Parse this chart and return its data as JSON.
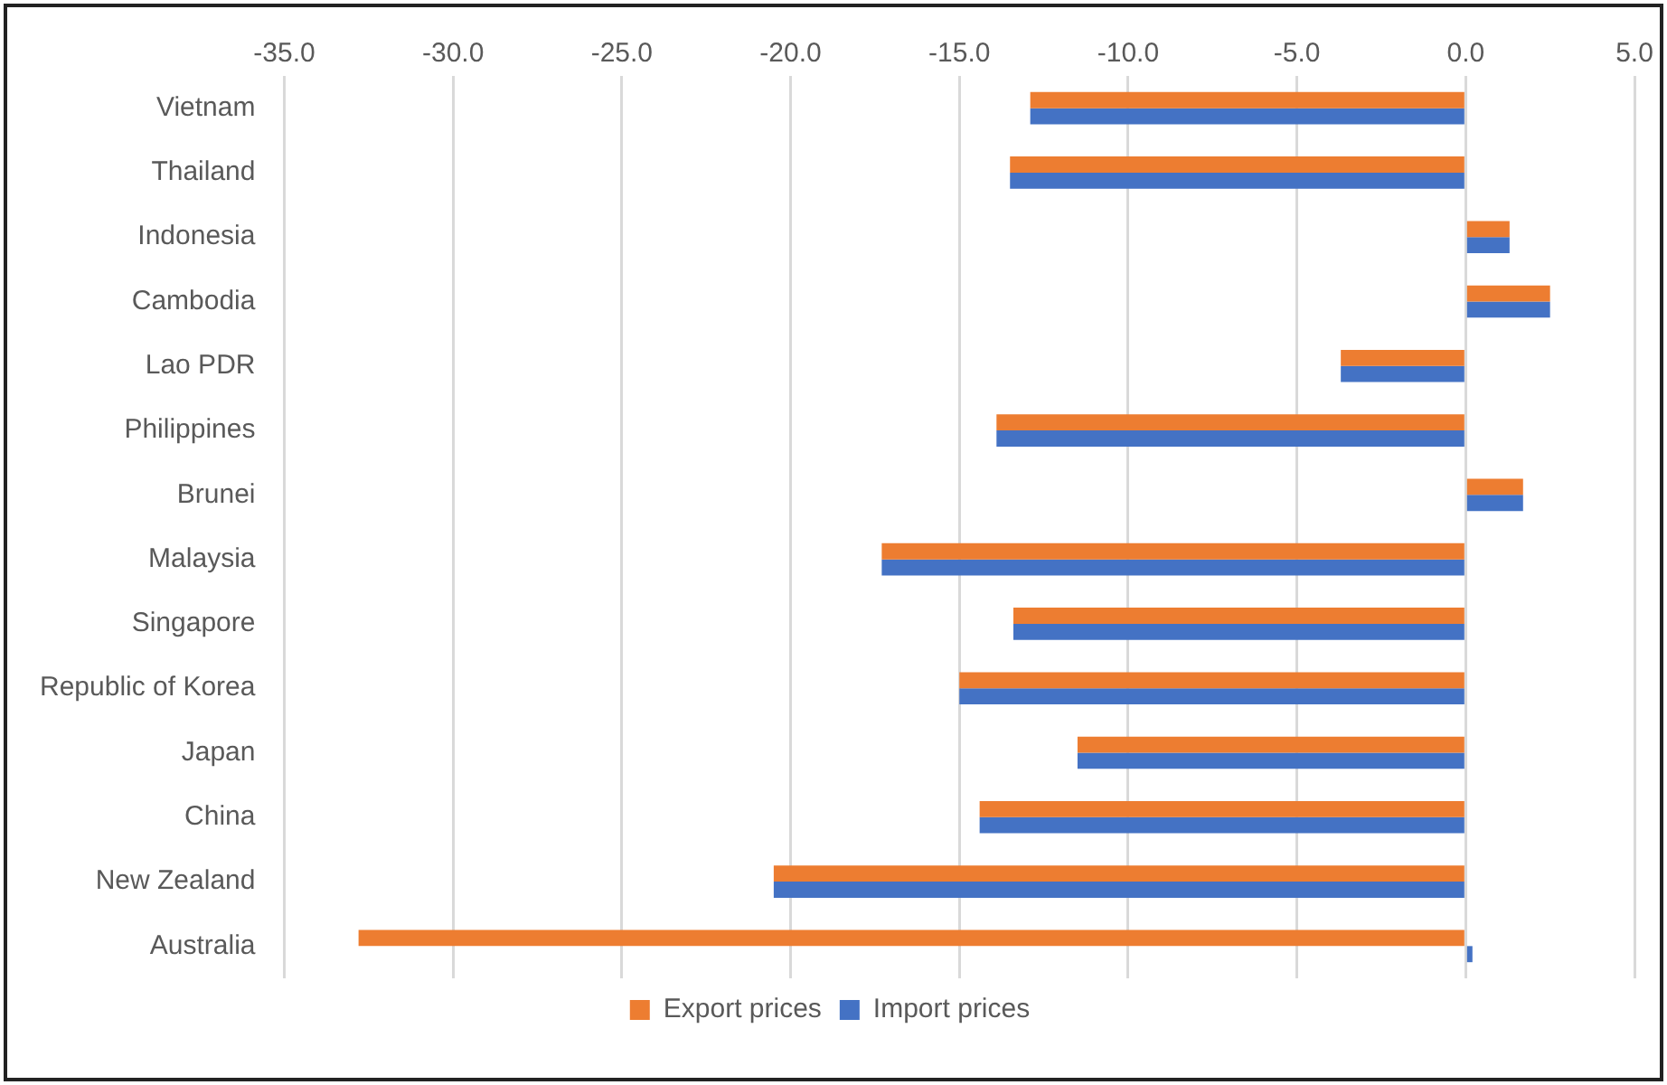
{
  "chart_data": {
    "type": "bar",
    "orientation": "horizontal",
    "categories": [
      "Vietnam",
      "Thailand",
      "Indonesia",
      "Cambodia",
      "Lao PDR",
      "Philippines",
      "Brunei",
      "Malaysia",
      "Singapore",
      "Republic of Korea",
      "Japan",
      "China",
      "New Zealand",
      "Australia"
    ],
    "series": [
      {
        "name": "Export prices",
        "color": "#ed7d31",
        "values": [
          -12.9,
          -13.5,
          1.3,
          2.5,
          -3.7,
          -13.9,
          1.7,
          -17.3,
          -13.4,
          -15.0,
          -11.5,
          -14.4,
          -20.5,
          -32.8
        ]
      },
      {
        "name": "Import prices",
        "color": "#4472c4",
        "values": [
          -12.9,
          -13.5,
          1.3,
          2.5,
          -3.7,
          -13.9,
          1.7,
          -17.3,
          -13.4,
          -15.0,
          -11.5,
          -14.4,
          -20.5,
          0.2
        ]
      }
    ],
    "xlim": [
      -35,
      5
    ],
    "xticks": [
      {
        "value": -35,
        "label": "-35.0"
      },
      {
        "value": -30,
        "label": "-30.0"
      },
      {
        "value": -25,
        "label": "-25.0"
      },
      {
        "value": -20,
        "label": "-20.0"
      },
      {
        "value": -15,
        "label": "-15.0"
      },
      {
        "value": -10,
        "label": "-10.0"
      },
      {
        "value": -5,
        "label": "-5.0"
      },
      {
        "value": 0,
        "label": "0.0"
      },
      {
        "value": 5,
        "label": "5.0"
      }
    ],
    "grid": "x",
    "legend": "bottom"
  }
}
